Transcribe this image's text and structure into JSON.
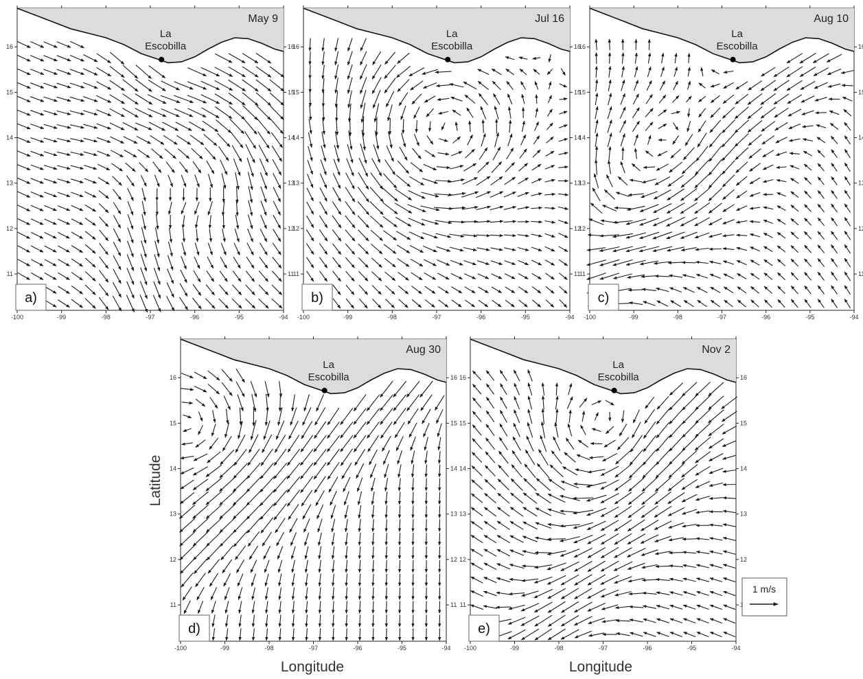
{
  "figure": {
    "xlabel": "Longitude",
    "ylabel": "Latitude",
    "site_label": [
      "La",
      "Escobilla"
    ],
    "scale_label": "1 m/s"
  },
  "chart_data": [
    {
      "type": "quiver",
      "panel": "a)",
      "date": "May 9",
      "xlim": [
        -100,
        -94
      ],
      "ylim": [
        10.2,
        16.85
      ],
      "x_ticks": [
        -100,
        -99,
        -98,
        -97,
        -96,
        -95,
        -94
      ],
      "y_ticks": [
        11,
        12,
        13,
        14,
        15,
        16
      ],
      "site": {
        "lon": -96.75,
        "lat": 15.72
      },
      "flow": [
        {
          "kind": "eddy",
          "sense": "cw",
          "lon": -96.0,
          "lat": 13.7,
          "r": 1.3,
          "speed": 0.55
        },
        {
          "kind": "uniform",
          "u": 0.4,
          "v": -0.25,
          "speed": 0.3
        },
        {
          "kind": "jet",
          "lon": -97.2,
          "lat": 13.3,
          "angle": -90,
          "speed": 0.5
        }
      ]
    },
    {
      "type": "quiver",
      "panel": "b)",
      "date": "Jul 16",
      "xlim": [
        -100,
        -94
      ],
      "ylim": [
        10.2,
        16.85
      ],
      "x_ticks": [
        -100,
        -99,
        -98,
        -97,
        -96,
        -95,
        -94
      ],
      "y_ticks": [
        11,
        12,
        13,
        14,
        15,
        16
      ],
      "site": {
        "lon": -96.75,
        "lat": 15.72
      },
      "flow": [
        {
          "kind": "eddy",
          "sense": "ccw",
          "lon": -97.2,
          "lat": 14.0,
          "r": 1.5,
          "speed": 0.7
        },
        {
          "kind": "uniform",
          "u": 0.1,
          "v": -0.2,
          "speed": 0.25
        }
      ]
    },
    {
      "type": "quiver",
      "panel": "c)",
      "date": "Aug 10",
      "xlim": [
        -100,
        -94
      ],
      "ylim": [
        10.2,
        16.85
      ],
      "x_ticks": [
        -100,
        -99,
        -98,
        -97,
        -96,
        -95,
        -94
      ],
      "y_ticks": [
        11,
        12,
        13,
        14,
        15,
        16
      ],
      "site": {
        "lon": -96.75,
        "lat": 15.72
      },
      "flow": [
        {
          "kind": "jet",
          "lon": -96.6,
          "lat": 14.2,
          "angle": -135,
          "speed": 0.8
        },
        {
          "kind": "eddy",
          "sense": "cw",
          "lon": -98.5,
          "lat": 13.0,
          "r": 1.4,
          "speed": 0.35
        },
        {
          "kind": "uniform",
          "u": -0.1,
          "v": 0.2,
          "speed": 0.25
        }
      ]
    },
    {
      "type": "quiver",
      "panel": "d)",
      "date": "Aug 30",
      "xlim": [
        -100,
        -94
      ],
      "ylim": [
        10.2,
        16.85
      ],
      "x_ticks": [
        -100,
        -99,
        -98,
        -97,
        -96,
        -95,
        -94
      ],
      "y_ticks": [
        11,
        12,
        13,
        14,
        15,
        16
      ],
      "site": {
        "lon": -96.75,
        "lat": 15.72
      },
      "flow": [
        {
          "kind": "jet",
          "lon": -97.5,
          "lat": 14.0,
          "angle": -145,
          "speed": 0.8
        },
        {
          "kind": "eddy",
          "sense": "cw",
          "lon": -99.3,
          "lat": 15.0,
          "r": 0.9,
          "speed": 0.45
        },
        {
          "kind": "uniform",
          "u": 0.0,
          "v": -0.3,
          "speed": 0.3
        }
      ]
    },
    {
      "type": "quiver",
      "panel": "e)",
      "date": "Nov 2",
      "xlim": [
        -100,
        -94
      ],
      "ylim": [
        10.2,
        16.85
      ],
      "x_ticks": [
        -100,
        -99,
        -98,
        -97,
        -96,
        -95,
        -94
      ],
      "y_ticks": [
        11,
        12,
        13,
        14,
        15,
        16
      ],
      "site": {
        "lon": -96.75,
        "lat": 15.72
      },
      "flow": [
        {
          "kind": "jet",
          "lon": -96.2,
          "lat": 13.4,
          "angle": -125,
          "speed": 0.9
        },
        {
          "kind": "eddy",
          "sense": "cw",
          "lon": -97.3,
          "lat": 14.4,
          "r": 1.1,
          "speed": 0.5
        },
        {
          "kind": "uniform",
          "u": -0.3,
          "v": 0.15,
          "speed": 0.35
        }
      ]
    }
  ],
  "coastline": [
    [
      -100,
      16.85
    ],
    [
      -99.6,
      16.7
    ],
    [
      -99.2,
      16.55
    ],
    [
      -98.8,
      16.4
    ],
    [
      -98.4,
      16.3
    ],
    [
      -98.0,
      16.2
    ],
    [
      -97.6,
      16.05
    ],
    [
      -97.2,
      15.85
    ],
    [
      -96.9,
      15.75
    ],
    [
      -96.6,
      15.65
    ],
    [
      -96.3,
      15.67
    ],
    [
      -96.0,
      15.78
    ],
    [
      -95.7,
      15.95
    ],
    [
      -95.4,
      16.1
    ],
    [
      -95.1,
      16.2
    ],
    [
      -94.8,
      16.18
    ],
    [
      -94.5,
      16.08
    ],
    [
      -94.2,
      15.95
    ],
    [
      -94,
      15.9
    ]
  ]
}
